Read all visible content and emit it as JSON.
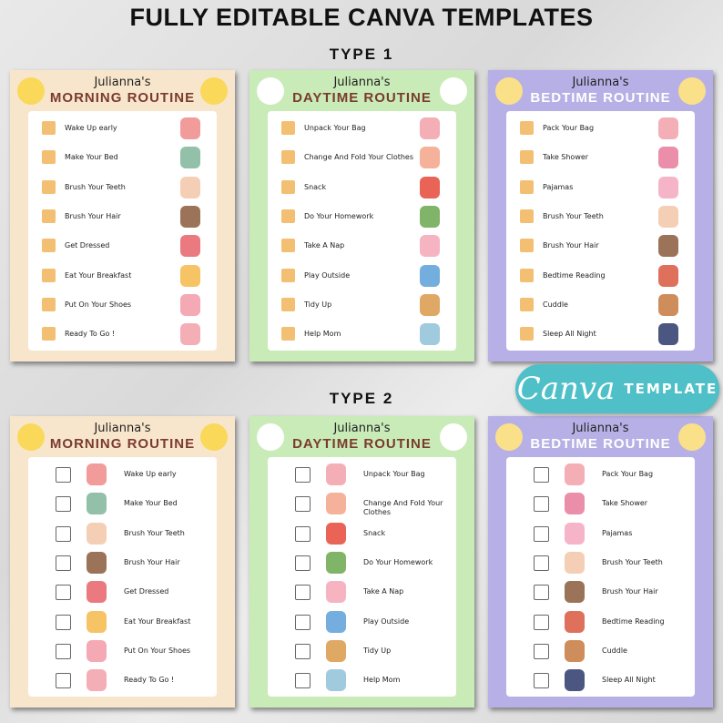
{
  "headline": "FULLY EDITABLE CANVA TEMPLATES",
  "types": [
    "TYPE 1",
    "TYPE 2"
  ],
  "colors": {
    "checkbox_fill": "#f3bf72",
    "canva_badge": "#4fc0c8"
  },
  "cards": [
    {
      "name": "Julianna's",
      "title": "MORNING ROUTINE",
      "bg": "#f8e6cc",
      "title_color": "#7a3b2e",
      "deco": "sun-icon",
      "deco_color": "#f9d85a",
      "items": [
        {
          "label": "Wake Up early",
          "icon": "alarm-clock-icon",
          "icon_color": "#f08a8a"
        },
        {
          "label": "Make Your Bed",
          "icon": "bed-icon",
          "icon_color": "#7fb59a"
        },
        {
          "label": "Brush Your Teeth",
          "icon": "child-brushing-teeth-icon",
          "icon_color": "#f3c7a8"
        },
        {
          "label": "Brush Your Hair",
          "icon": "child-brushing-hair-icon",
          "icon_color": "#8a5a3b"
        },
        {
          "label": "Get Dressed",
          "icon": "dress-icon",
          "icon_color": "#e7626a"
        },
        {
          "label": "Eat Your Breakfast",
          "icon": "breakfast-icon",
          "icon_color": "#f5b94a"
        },
        {
          "label": "Put On Your Shoes",
          "icon": "shoes-icon",
          "icon_color": "#f29aa8"
        },
        {
          "label": "Ready To Go !",
          "icon": "backpack-icon",
          "icon_color": "#f2a0a8"
        }
      ]
    },
    {
      "name": "Julianna's",
      "title": "DAYTIME ROUTINE",
      "bg": "#c9ebb8",
      "title_color": "#7a3b2e",
      "deco": "daisy-icon",
      "deco_color": "#ffffff",
      "items": [
        {
          "label": "Unpack Your Bag",
          "icon": "backpack-icon",
          "icon_color": "#f2a0a8"
        },
        {
          "label": "Change And Fold Your Clothes",
          "icon": "folded-clothes-icon",
          "icon_color": "#f4a38a"
        },
        {
          "label": "Snack",
          "icon": "apple-icon",
          "icon_color": "#e5483a"
        },
        {
          "label": "Do Your Homework",
          "icon": "book-icon",
          "icon_color": "#6aa84f"
        },
        {
          "label": "Take A Nap",
          "icon": "sleep-mask-icon",
          "icon_color": "#f4a7b9"
        },
        {
          "label": "Play Outside",
          "icon": "kite-icon",
          "icon_color": "#5aa0d8"
        },
        {
          "label": "Tidy Up",
          "icon": "toy-box-icon",
          "icon_color": "#d99a4a"
        },
        {
          "label": "Help Mom",
          "icon": "mom-helping-icon",
          "icon_color": "#8fc1d8"
        }
      ]
    },
    {
      "name": "Julianna's",
      "title": "BEDTIME ROUTINE",
      "bg": "#b7b0e6",
      "title_color": "#ffffff",
      "deco": "star-icon",
      "deco_color": "#fbe08a",
      "items": [
        {
          "label": "Pack Your Bag",
          "icon": "backpack-icon",
          "icon_color": "#f2a0a8"
        },
        {
          "label": "Take Shower",
          "icon": "shower-icon",
          "icon_color": "#e87a9a"
        },
        {
          "label": "Pajamas",
          "icon": "pajamas-icon",
          "icon_color": "#f4a7c0"
        },
        {
          "label": "Brush Your Teeth",
          "icon": "child-brushing-teeth-icon",
          "icon_color": "#f3c7a8"
        },
        {
          "label": "Brush Your Hair",
          "icon": "child-brushing-hair-icon",
          "icon_color": "#8a5a3b"
        },
        {
          "label": "Bedtime Reading",
          "icon": "books-icon",
          "icon_color": "#d9573f"
        },
        {
          "label": "Cuddle",
          "icon": "cuddle-icon",
          "icon_color": "#c7793f"
        },
        {
          "label": "Sleep All Night",
          "icon": "sleeping-child-icon",
          "icon_color": "#2c3a6b"
        }
      ]
    }
  ],
  "badge": {
    "script": "Canva",
    "label": "TEMPLATE"
  }
}
